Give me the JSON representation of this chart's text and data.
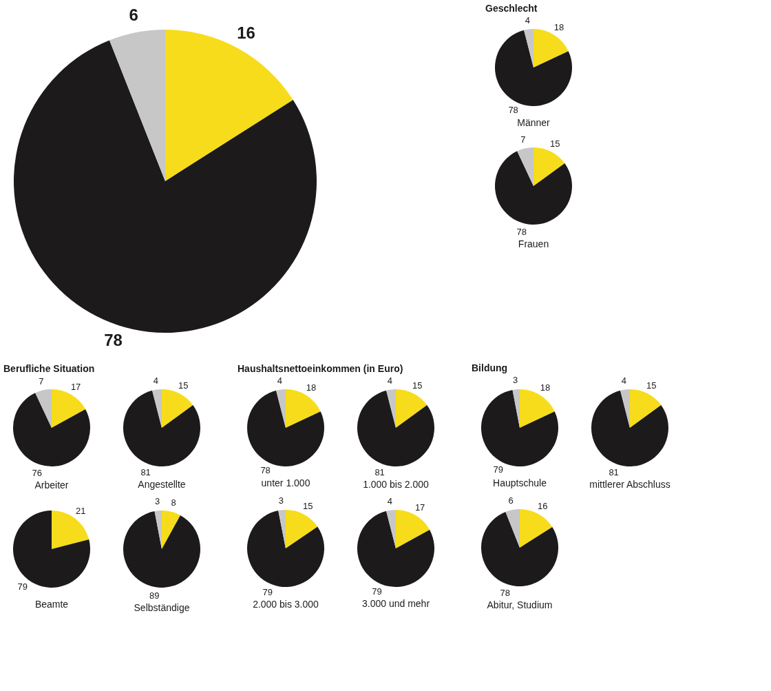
{
  "chart_data": [
    {
      "type": "pie",
      "categories": [
        null,
        null,
        null
      ],
      "values": [
        16,
        78,
        6
      ],
      "colors": [
        "#f7dc1b",
        "#1c1a1b",
        "#c6c7c6"
      ],
      "data_labels": true
    },
    {
      "type": "pie",
      "title": "Männer",
      "annotations": [
        "Geschlecht"
      ],
      "categories": [
        null,
        null,
        null
      ],
      "values": [
        18,
        78,
        4
      ],
      "colors": [
        "#f7dc1b",
        "#1c1a1b",
        "#c6c7c6"
      ],
      "data_labels": true
    },
    {
      "type": "pie",
      "title": "Frauen",
      "categories": [
        null,
        null,
        null
      ],
      "values": [
        15,
        78,
        7
      ],
      "colors": [
        "#f7dc1b",
        "#1c1a1b",
        "#c6c7c6"
      ],
      "data_labels": true
    },
    {
      "type": "pie",
      "title": "Arbeiter",
      "annotations": [
        "Berufliche Situation"
      ],
      "categories": [
        null,
        null,
        null
      ],
      "values": [
        17,
        76,
        7
      ],
      "colors": [
        "#f7dc1b",
        "#1c1a1b",
        "#c6c7c6"
      ],
      "data_labels": true
    },
    {
      "type": "pie",
      "title": "Angestellte",
      "categories": [
        null,
        null,
        null
      ],
      "values": [
        15,
        81,
        4
      ],
      "colors": [
        "#f7dc1b",
        "#1c1a1b",
        "#c6c7c6"
      ],
      "data_labels": true
    },
    {
      "type": "pie",
      "title": "Beamte",
      "categories": [
        null,
        null
      ],
      "values": [
        21,
        79
      ],
      "colors": [
        "#f7dc1b",
        "#1c1a1b"
      ],
      "data_labels": true
    },
    {
      "type": "pie",
      "title": "Selbständige",
      "categories": [
        null,
        null,
        null
      ],
      "values": [
        8,
        89,
        3
      ],
      "colors": [
        "#f7dc1b",
        "#1c1a1b",
        "#c6c7c6"
      ],
      "data_labels": true
    },
    {
      "type": "pie",
      "title": "unter 1.000",
      "annotations": [
        "Haushaltsnettoeinkommen (in Euro)"
      ],
      "categories": [
        null,
        null,
        null
      ],
      "values": [
        18,
        78,
        4
      ],
      "colors": [
        "#f7dc1b",
        "#1c1a1b",
        "#c6c7c6"
      ],
      "data_labels": true
    },
    {
      "type": "pie",
      "title": "1.000 bis 2.000",
      "categories": [
        null,
        null,
        null
      ],
      "values": [
        15,
        81,
        4
      ],
      "colors": [
        "#f7dc1b",
        "#1c1a1b",
        "#c6c7c6"
      ],
      "data_labels": true
    },
    {
      "type": "pie",
      "title": "2.000 bis 3.000",
      "categories": [
        null,
        null,
        null
      ],
      "values": [
        15,
        79,
        3
      ],
      "colors": [
        "#f7dc1b",
        "#1c1a1b",
        "#c6c7c6"
      ],
      "data_labels": true
    },
    {
      "type": "pie",
      "title": "3.000 und mehr",
      "categories": [
        null,
        null,
        null
      ],
      "values": [
        17,
        79,
        4
      ],
      "colors": [
        "#f7dc1b",
        "#1c1a1b",
        "#c6c7c6"
      ],
      "data_labels": true
    },
    {
      "type": "pie",
      "title": "Hauptschule",
      "annotations": [
        "Bildung"
      ],
      "categories": [
        null,
        null,
        null
      ],
      "values": [
        18,
        79,
        3
      ],
      "colors": [
        "#f7dc1b",
        "#1c1a1b",
        "#c6c7c6"
      ],
      "data_labels": true
    },
    {
      "type": "pie",
      "title": "mittlerer Abschluss",
      "categories": [
        null,
        null,
        null
      ],
      "values": [
        15,
        81,
        4
      ],
      "colors": [
        "#f7dc1b",
        "#1c1a1b",
        "#c6c7c6"
      ],
      "data_labels": true
    },
    {
      "type": "pie",
      "title": "Abitur, Studium",
      "categories": [
        null,
        null,
        null
      ],
      "values": [
        16,
        78,
        6
      ],
      "colors": [
        "#f7dc1b",
        "#1c1a1b",
        "#c6c7c6"
      ],
      "data_labels": true
    }
  ]
}
